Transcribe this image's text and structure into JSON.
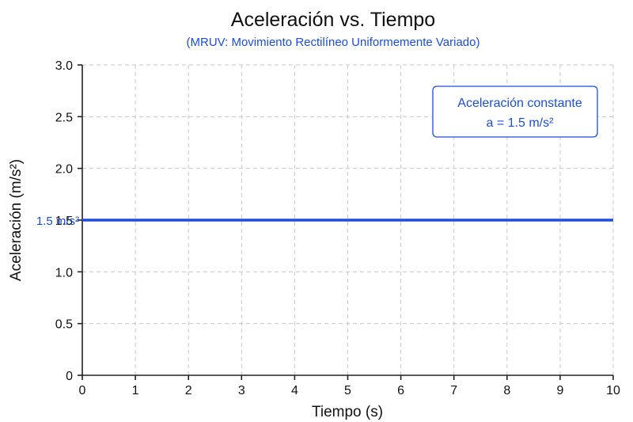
{
  "colors": {
    "accent": "#1d4ed8",
    "text": "#111111",
    "grid": "#c8c8c8"
  },
  "chart_data": {
    "type": "line",
    "title": "Aceleración vs. Tiempo",
    "subtitle": "(MRUV: Movimiento Rectilíneo Uniformemente Variado)",
    "xlabel": "Tiempo (s)",
    "ylabel": "Aceleración (m/s²)",
    "xlim": [
      0,
      10
    ],
    "ylim": [
      0,
      3.0
    ],
    "x_ticks": [
      "0",
      "1",
      "2",
      "3",
      "4",
      "5",
      "6",
      "7",
      "8",
      "9",
      "10"
    ],
    "y_ticks": [
      "0",
      "0.5",
      "1.0",
      "1.5",
      "2.0",
      "2.5",
      "3.0"
    ],
    "grid": true,
    "series": [
      {
        "x": [
          0,
          10
        ],
        "values": [
          1.5,
          1.5
        ]
      }
    ],
    "line_label": "1.5 m/s²",
    "annotation": {
      "line1": "Aceleración constante",
      "line2": "a = 1.5 m/s²",
      "placement": "top-right"
    }
  }
}
